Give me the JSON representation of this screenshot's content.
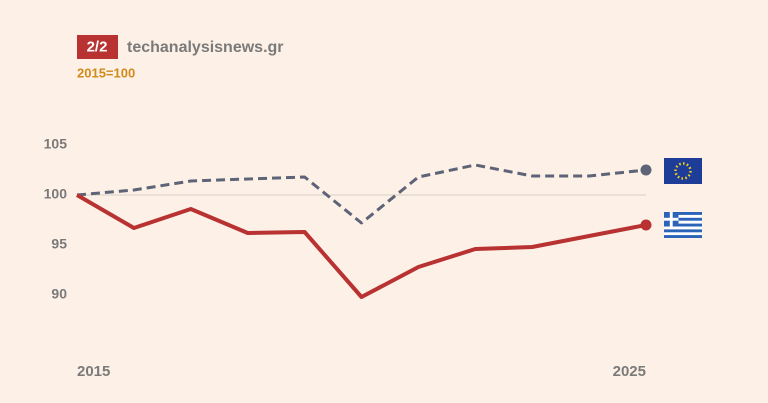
{
  "chart_data": {
    "type": "line",
    "badge": "2/2",
    "title": "techanalysisnews.gr",
    "subtitle": "2015=100",
    "x": [
      2015,
      2016,
      2017,
      2018,
      2019,
      2020,
      2021,
      2022,
      2023,
      2024,
      2025
    ],
    "xlim": [
      2015,
      2025
    ],
    "xticks": [
      2015,
      2025
    ],
    "ylim": [
      86,
      106
    ],
    "yticks": [
      90,
      95,
      100,
      105
    ],
    "reference_line": 100,
    "series": [
      {
        "color": "#5d6478",
        "dashed": true,
        "values": [
          100,
          100.5,
          101.4,
          101.6,
          101.8,
          97.2,
          101.8,
          103.0,
          101.9,
          101.9,
          102.5
        ]
      },
      {
        "color": "#b83232",
        "dashed": false,
        "values": [
          100,
          96.7,
          98.6,
          96.2,
          96.3,
          89.8,
          92.8,
          94.6,
          94.8,
          95.9,
          97.0
        ]
      }
    ]
  }
}
